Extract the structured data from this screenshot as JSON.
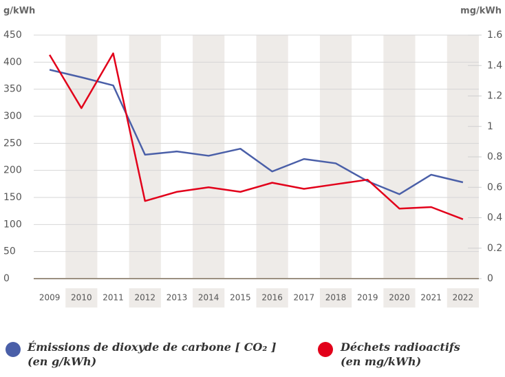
{
  "chart_data": {
    "type": "line",
    "y_label": "g/kWh",
    "y2_label": "mg/kWh",
    "categories": [
      "2009",
      "2010",
      "2011",
      "2012",
      "2013",
      "2014",
      "2015",
      "2016",
      "2017",
      "2018",
      "2019",
      "2020",
      "2021",
      "2022"
    ],
    "series": [
      {
        "name": "Émissions de dioxyde de carbone [ CO₂ ] (en g/kWh)",
        "color": "#4a5fa8",
        "axis": "y",
        "values": [
          386,
          372,
          357,
          229,
          235,
          227,
          240,
          198,
          221,
          213,
          180,
          156,
          192,
          178
        ]
      },
      {
        "name": "Déchets radioactifs (en mg/kWh)",
        "color": "#e2001a",
        "axis": "y2",
        "values": [
          1.47,
          1.12,
          1.48,
          0.51,
          0.57,
          0.6,
          0.57,
          0.63,
          0.59,
          0.62,
          0.65,
          0.46,
          0.47,
          0.39
        ]
      }
    ],
    "ylim": [
      0,
      450
    ],
    "yticks": [
      0,
      50,
      100,
      150,
      200,
      250,
      300,
      350,
      400,
      450
    ],
    "y2lim": [
      0,
      1.6
    ],
    "y2ticks": [
      0,
      0.2,
      0.4,
      0.6,
      0.8,
      1,
      1.2,
      1.4,
      1.6
    ],
    "grid": true
  }
}
